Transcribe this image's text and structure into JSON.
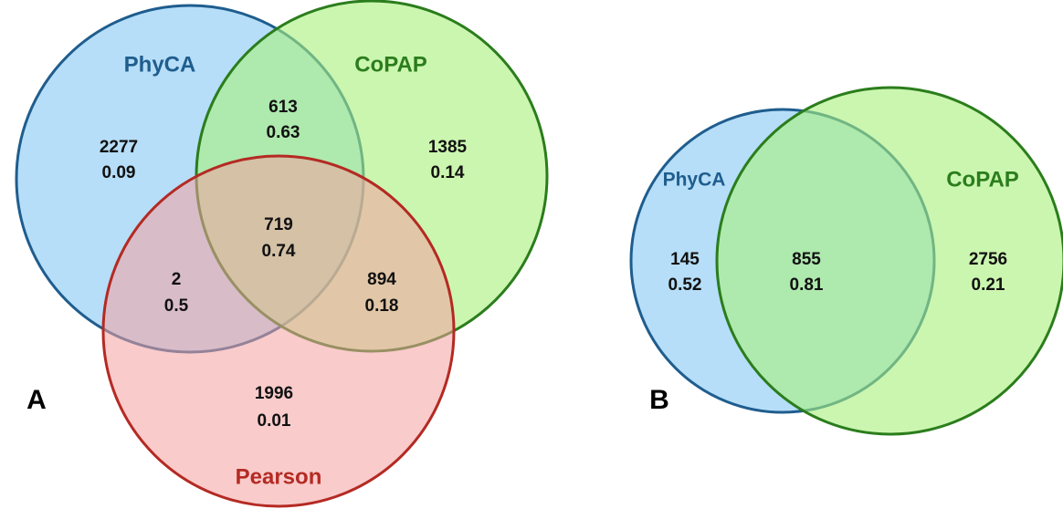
{
  "panels": [
    {
      "label": "A",
      "sets": [
        {
          "name": "PhyCA"
        },
        {
          "name": "CoPAP"
        },
        {
          "name": "Pearson"
        }
      ],
      "regions": [
        {
          "count": 2277,
          "score": 0.09
        },
        {
          "count": 613,
          "score": 0.63
        },
        {
          "count": 1385,
          "score": 0.14
        },
        {
          "count": 719,
          "score": 0.74
        },
        {
          "count": 2,
          "score": 0.5
        },
        {
          "count": 894,
          "score": 0.18
        },
        {
          "count": 1996,
          "score": 0.01
        }
      ]
    },
    {
      "label": "B",
      "sets": [
        {
          "name": "PhyCA"
        },
        {
          "name": "CoPAP"
        }
      ],
      "regions": [
        {
          "count": 145,
          "score": 0.52
        },
        {
          "count": 855,
          "score": 0.81
        },
        {
          "count": 2756,
          "score": 0.21
        }
      ]
    }
  ]
}
